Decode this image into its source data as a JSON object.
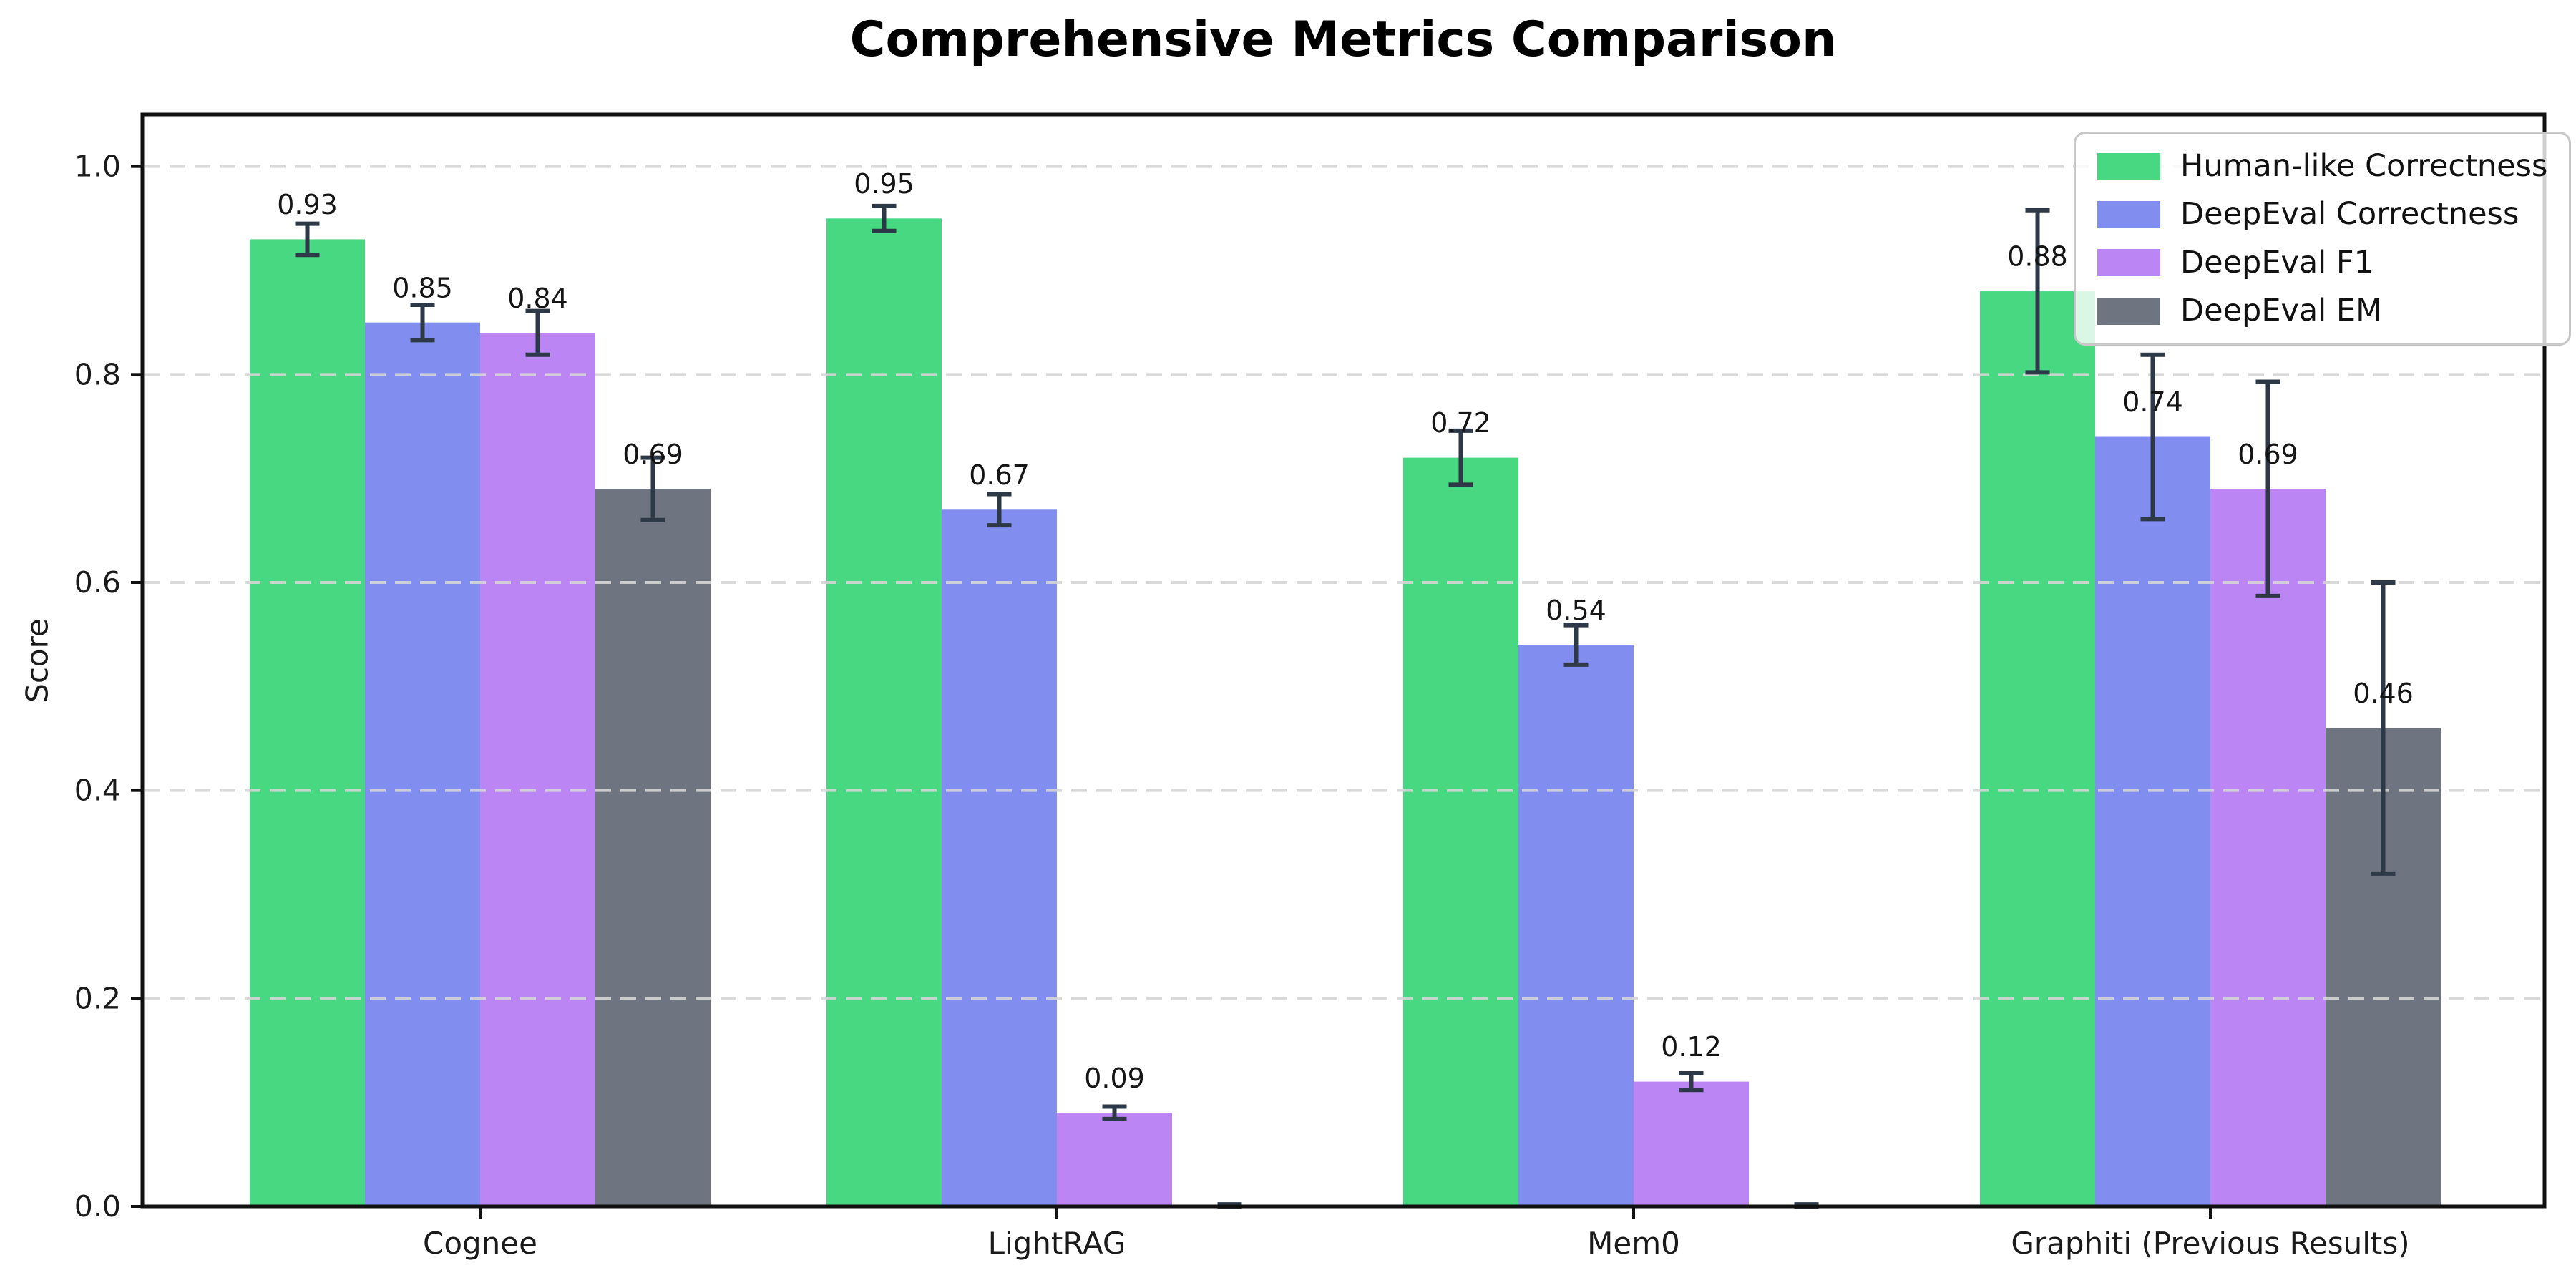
{
  "title": "Comprehensive Metrics Comparison",
  "chart_data": {
    "type": "bar",
    "title": "Comprehensive Metrics Comparison",
    "xlabel": "",
    "ylabel": "Score",
    "ylim": [
      0,
      1.05
    ],
    "ytick_values": [
      0.0,
      0.2,
      0.4,
      0.6,
      0.8,
      1.0
    ],
    "ytick_labels": [
      "0.0",
      "0.2",
      "0.4",
      "0.6",
      "0.8",
      "1.0"
    ],
    "grid": "horizontal-dashed",
    "legend_position": "upper-right",
    "categories": [
      "Cognee",
      "LightRAG",
      "Mem0",
      "Graphiti (Previous Results)"
    ],
    "series": [
      {
        "name": "Human-like Correctness",
        "color": "#2fd36f",
        "values": [
          0.93,
          0.95,
          0.72,
          0.88
        ],
        "errors": [
          0.015,
          0.012,
          0.026,
          0.078
        ],
        "labels": [
          "0.93",
          "0.95",
          "0.72",
          "0.88"
        ]
      },
      {
        "name": "DeepEval Correctness",
        "color": "#6f7eee",
        "values": [
          0.85,
          0.67,
          0.54,
          0.74
        ],
        "errors": [
          0.017,
          0.015,
          0.019,
          0.079
        ],
        "labels": [
          "0.85",
          "0.67",
          "0.54",
          "0.74"
        ]
      },
      {
        "name": "DeepEval F1",
        "color": "#b274f2",
        "values": [
          0.84,
          0.09,
          0.12,
          0.69
        ],
        "errors": [
          0.021,
          0.006,
          0.008,
          0.103
        ],
        "labels": [
          "0.84",
          "0.09",
          "0.12",
          "0.69"
        ]
      },
      {
        "name": "DeepEval EM",
        "color": "#5a626e",
        "values": [
          0.69,
          0.0,
          0.0,
          0.46
        ],
        "errors": [
          0.03,
          0.002,
          0.002,
          0.14
        ],
        "labels": [
          "0.69",
          null,
          null,
          "0.46"
        ]
      }
    ],
    "bar_alpha": 0.88,
    "error_bar_color": "#2e3947",
    "grid_color": "#d5d5d5",
    "axis_color": "#111111",
    "tick_label_color": "#1a1a1a",
    "value_label_color": "#151515",
    "background_color": "#ffffff"
  }
}
